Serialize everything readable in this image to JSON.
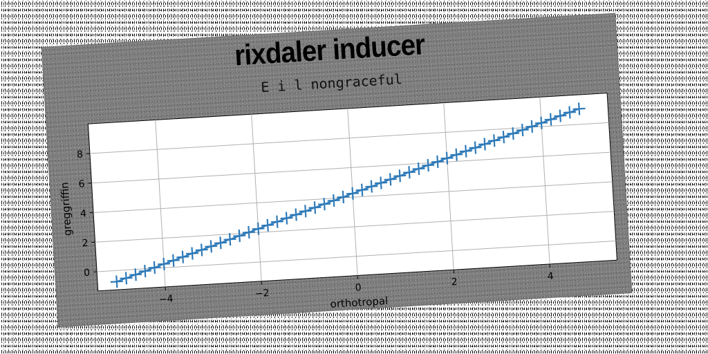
{
  "chart_data": {
    "type": "line",
    "title": "rixdaler inducer",
    "subtitle": "E i l nongraceful",
    "xlabel": "orthotropal",
    "ylabel": "greggriffin",
    "xlim": [
      -5.4,
      5.4
    ],
    "ylim": [
      -1.3,
      10.0
    ],
    "xticks": [
      -4,
      -2,
      0,
      2,
      4
    ],
    "yticks": [
      0,
      2,
      4,
      6,
      8
    ],
    "grid": true,
    "marker": "+",
    "series": [
      {
        "color": "#2e7ab8",
        "x": [
          -5.0,
          -4.8,
          -4.6,
          -4.4,
          -4.2,
          -4.0,
          -3.8,
          -3.6,
          -3.4,
          -3.2,
          -3.0,
          -2.8,
          -2.6,
          -2.4,
          -2.2,
          -2.0,
          -1.8,
          -1.6,
          -1.4,
          -1.2,
          -1.0,
          -0.8,
          -0.6,
          -0.4,
          -0.2,
          0.0,
          0.2,
          0.4,
          0.6,
          0.8,
          1.0,
          1.2,
          1.4,
          1.6,
          1.8,
          2.0,
          2.2,
          2.4,
          2.6,
          2.8,
          3.0,
          3.2,
          3.4,
          3.6,
          3.8,
          4.0,
          4.2,
          4.4,
          4.6,
          4.8
        ],
        "y": [
          -0.75,
          -0.55,
          -0.35,
          -0.15,
          0.05,
          0.25,
          0.45,
          0.65,
          0.85,
          1.05,
          1.25,
          1.45,
          1.65,
          1.85,
          2.05,
          2.25,
          2.45,
          2.65,
          2.85,
          3.05,
          3.25,
          3.45,
          3.65,
          3.85,
          4.05,
          4.25,
          4.45,
          4.65,
          4.85,
          5.05,
          5.25,
          5.45,
          5.65,
          5.85,
          6.05,
          6.25,
          6.45,
          6.65,
          6.85,
          7.05,
          7.25,
          7.45,
          7.65,
          7.85,
          8.05,
          8.25,
          8.45,
          8.65,
          8.85,
          9.05
        ]
      }
    ]
  }
}
